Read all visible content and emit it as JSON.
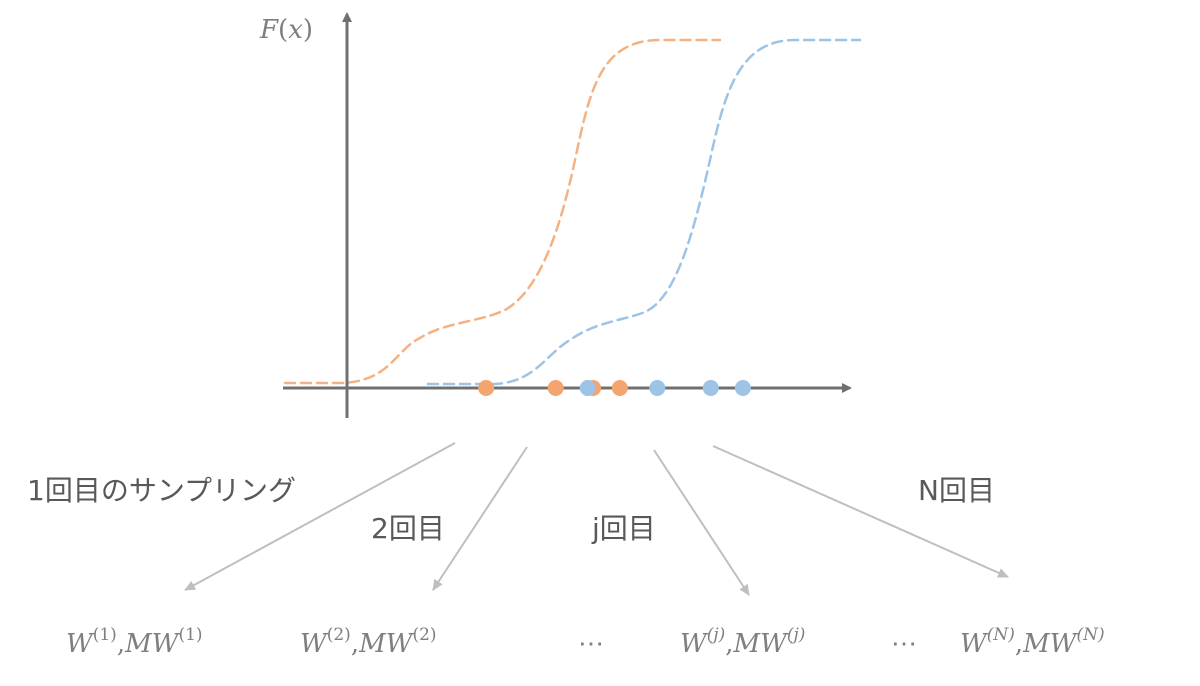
{
  "axis": {
    "y_label": {
      "func": "F",
      "open": "(",
      "var": "x",
      "close": ")"
    }
  },
  "colors": {
    "axis": "#707070",
    "orange": "#f4b183",
    "orange_dot": "#f4a46e",
    "blue": "#9dc3e6",
    "blue_dot": "#9dc3e6",
    "arrow": "#bfbfbf",
    "text": "#595959"
  },
  "samples": {
    "orange": [
      2.6,
      3.9,
      4.6,
      5.1
    ],
    "blue": [
      4.5,
      5.8,
      6.8,
      7.4
    ]
  },
  "labels": {
    "first": "1回目のサンプリング",
    "second": "2回目",
    "jth": "j回目",
    "nth": "N回目"
  },
  "outputs": [
    {
      "w": "W",
      "sup": "(1)",
      "sep": ",",
      "mw": "MW",
      "sup2": "(1)"
    },
    {
      "w": "W",
      "sup": "(2)",
      "sep": ",",
      "mw": "MW",
      "sup2": "(2)"
    },
    {
      "w": "W",
      "sup": "(j)",
      "sep": ",",
      "mw": "MW",
      "sup2": "(j)"
    },
    {
      "w": "W",
      "sup": "(N)",
      "sep": ",",
      "mw": "MW",
      "sup2": "(N)"
    }
  ],
  "ellipsis": [
    "⋯",
    "⋯"
  ]
}
